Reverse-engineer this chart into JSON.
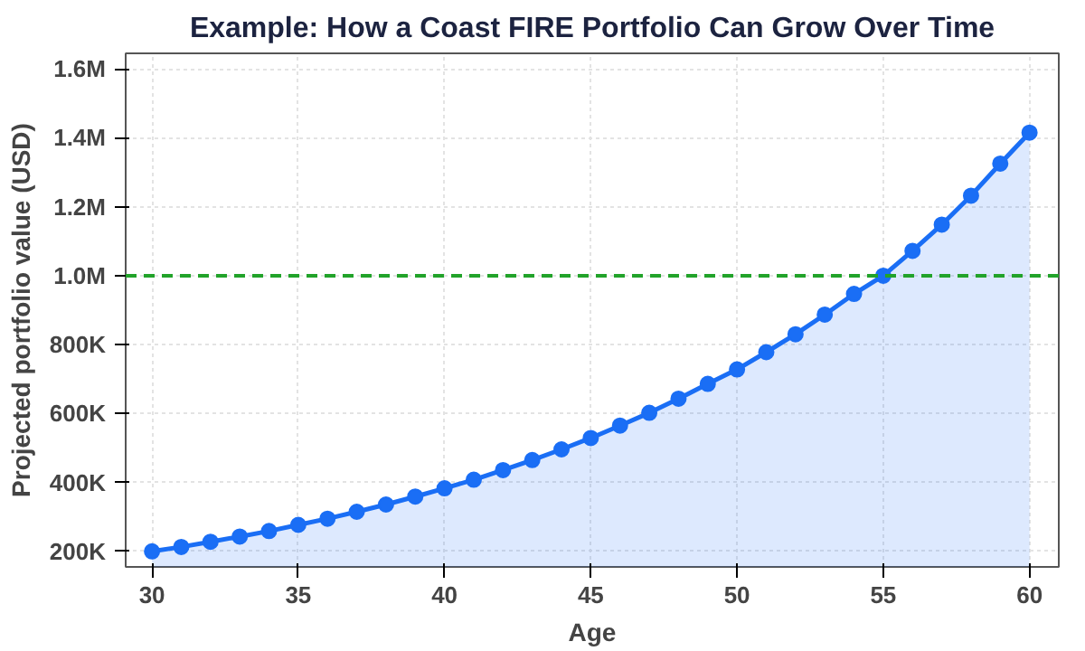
{
  "chart_data": {
    "type": "area",
    "title": "Example: How a Coast FIRE Portfolio Can Grow Over Time",
    "xlabel": "Age",
    "ylabel": "Projected portfolio value (USD)",
    "x": [
      30,
      31,
      32,
      33,
      34,
      35,
      36,
      37,
      38,
      39,
      40,
      41,
      42,
      43,
      44,
      45,
      46,
      47,
      48,
      49,
      50,
      51,
      52,
      53,
      54,
      55,
      56,
      57,
      58,
      59,
      60
    ],
    "series": [
      {
        "color": "#1a6ef5",
        "values": [
          200000,
          213000,
          228000,
          243000,
          259000,
          277000,
          295000,
          315000,
          336000,
          359000,
          383000,
          408000,
          436000,
          465000,
          496000,
          529000,
          565000,
          602000,
          643000,
          686000,
          728000,
          778000,
          830000,
          887000,
          947000,
          1000000,
          1072000,
          1148000,
          1232000,
          1325000,
          1415000
        ]
      }
    ],
    "xlim": [
      29.1,
      61
    ],
    "ylim": [
      155000,
      1645000
    ],
    "xticks": [
      30,
      35,
      40,
      45,
      50,
      55,
      60
    ],
    "yticks": [
      {
        "value": 200000,
        "label": "200K"
      },
      {
        "value": 400000,
        "label": "400K"
      },
      {
        "value": 600000,
        "label": "600K"
      },
      {
        "value": 800000,
        "label": "800K"
      },
      {
        "value": 1000000,
        "label": "1.0M"
      },
      {
        "value": 1200000,
        "label": "1.2M"
      },
      {
        "value": 1400000,
        "label": "1.4M"
      },
      {
        "value": 1600000,
        "label": "1.6M"
      }
    ],
    "ref_lines": [
      {
        "axis": "y",
        "value": 1000000,
        "color": "#22a32a",
        "line_style": "dashed"
      }
    ],
    "grid": true,
    "marker": "circle",
    "line_style": "solid"
  }
}
